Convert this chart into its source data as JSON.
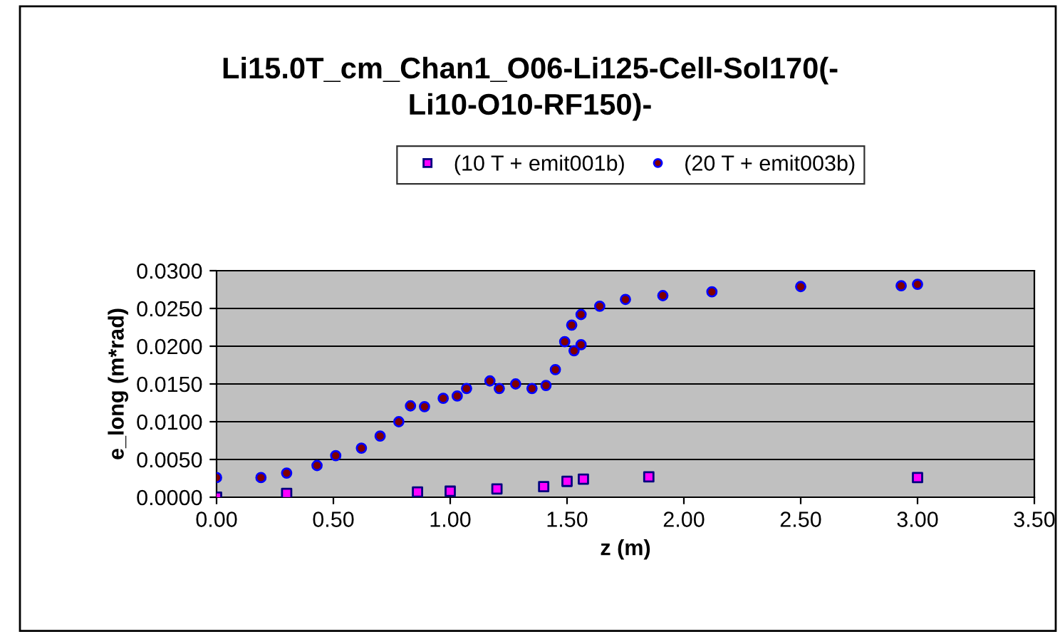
{
  "chart_data": {
    "type": "scatter",
    "title": "Li15.0T_cm_Chan1_O06-Li125-Cell-Sol170(-\nLi10-O10-RF150)-",
    "xlabel": "z (m)",
    "ylabel": "e_long (m*rad)",
    "series": [
      {
        "name": "(10 T + emit001b)",
        "color": "#000080",
        "marker": "square",
        "x": [
          0.0,
          0.3,
          0.86,
          1.0,
          1.2,
          1.4,
          1.5,
          1.57,
          1.85,
          3.0
        ],
        "values": [
          0.0,
          0.0005,
          0.0007,
          0.0008,
          0.0011,
          0.0014,
          0.0021,
          0.0024,
          0.0027,
          0.0026
        ]
      },
      {
        "name": "(20 T + emit003b)",
        "color": "#0000ff",
        "marker": "circle",
        "x": [
          0.0,
          0.19,
          0.3,
          0.43,
          0.51,
          0.62,
          0.7,
          0.78,
          0.83,
          0.89,
          0.97,
          1.03,
          1.07,
          1.17,
          1.21,
          1.28,
          1.35,
          1.41,
          1.45,
          1.49,
          1.52,
          1.53,
          1.56,
          1.56,
          1.64,
          1.75,
          1.91,
          2.12,
          2.5,
          2.93,
          3.0
        ],
        "values": [
          0.0026,
          0.0026,
          0.0032,
          0.0042,
          0.0055,
          0.0065,
          0.0081,
          0.01,
          0.0121,
          0.012,
          0.0131,
          0.0134,
          0.0144,
          0.0154,
          0.0144,
          0.015,
          0.0144,
          0.0148,
          0.0169,
          0.0206,
          0.0228,
          0.0194,
          0.0202,
          0.0242,
          0.0253,
          0.0262,
          0.0267,
          0.0272,
          0.0279,
          0.028,
          0.0282
        ]
      }
    ],
    "xlim": [
      0,
      3.5
    ],
    "xticks": [
      {
        "value": 0,
        "label": "0.00"
      },
      {
        "value": 0.5,
        "label": "0.50"
      },
      {
        "value": 1,
        "label": "1.00"
      },
      {
        "value": 1.5,
        "label": "1.50"
      },
      {
        "value": 2,
        "label": "2.00"
      },
      {
        "value": 2.5,
        "label": "2.50"
      },
      {
        "value": 3,
        "label": "3.00"
      },
      {
        "value": 3.5,
        "label": "3.50"
      }
    ],
    "ylim": [
      0,
      0.03
    ],
    "yticks": [
      {
        "value": 0,
        "label": "0.0000"
      },
      {
        "value": 0.005,
        "label": "0.0050"
      },
      {
        "value": 0.01,
        "label": "0.0100"
      },
      {
        "value": 0.015,
        "label": "0.0150"
      },
      {
        "value": 0.02,
        "label": "0.0200"
      },
      {
        "value": 0.025,
        "label": "0.0250"
      },
      {
        "value": 0.03,
        "label": "0.0300"
      }
    ],
    "grid": "y",
    "legend": "top"
  }
}
